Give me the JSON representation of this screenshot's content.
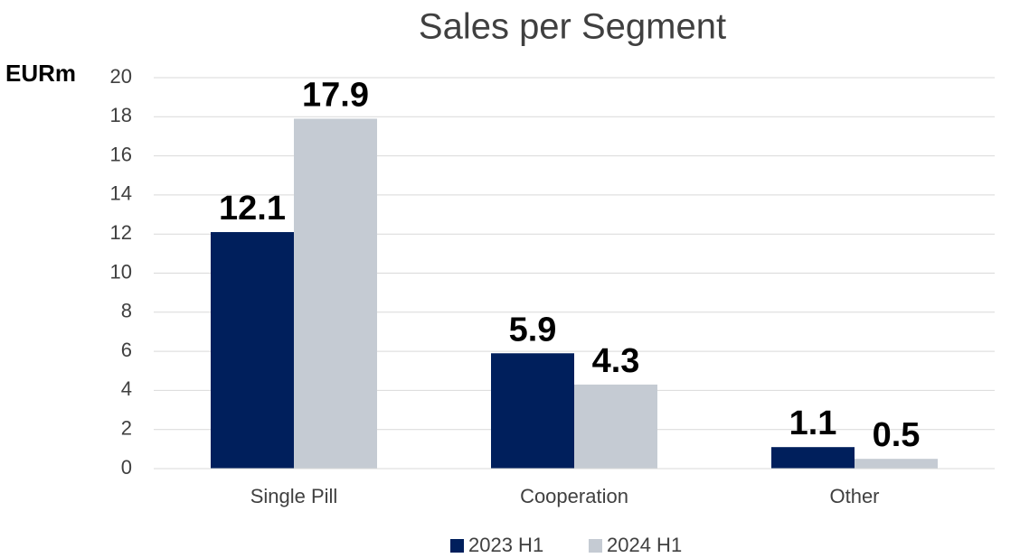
{
  "chart_data": {
    "type": "bar",
    "title": "Sales per Segment",
    "y_label": "EURm",
    "categories": [
      "Single Pill",
      "Cooperation",
      "Other"
    ],
    "series": [
      {
        "name": "2023 H1",
        "color": "#001f5c",
        "values": [
          12.1,
          5.9,
          1.1
        ]
      },
      {
        "name": "2024 H1",
        "color": "#c5cbd3",
        "values": [
          17.9,
          4.3,
          0.5
        ]
      }
    ],
    "ylim": [
      0,
      20
    ],
    "yticks": [
      0,
      2,
      4,
      6,
      8,
      10,
      12,
      14,
      16,
      18,
      20
    ],
    "grid": true,
    "legend": "bottom"
  }
}
